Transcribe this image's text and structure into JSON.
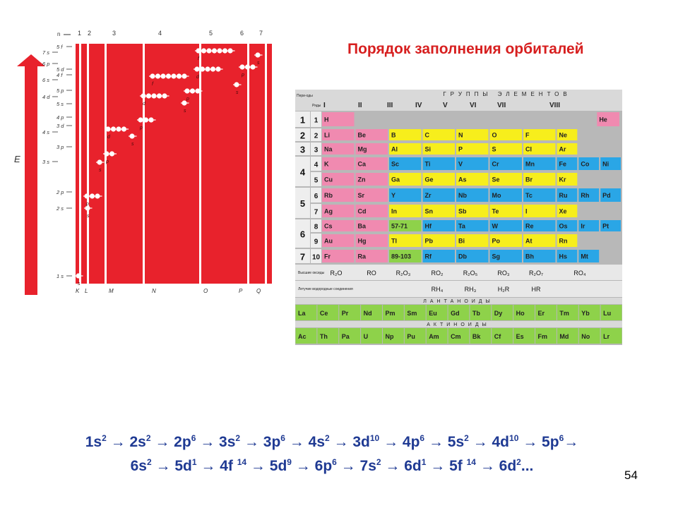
{
  "slide": {
    "title": "Порядок заполнения орбиталей",
    "page_number": "54"
  },
  "energy_diagram": {
    "axis_label": "E",
    "n_label": "n",
    "shell_numbers": [
      "1",
      "2",
      "3",
      "4",
      "5",
      "6",
      "7"
    ],
    "shell_letters": [
      "K",
      "L",
      "M",
      "N",
      "O",
      "P",
      "Q"
    ],
    "left_levels": [
      "7 s",
      "5 f",
      "6 p",
      "5 d",
      "4 f",
      "6 s",
      "5 p",
      "4 d",
      "5 s",
      "4 p",
      "3 d",
      "4 s",
      "3 p",
      "3 s",
      "2 p",
      "2 s",
      "1 s"
    ],
    "orbital_tags": [
      "s",
      "s",
      "p",
      "s",
      "p",
      "d",
      "s",
      "p",
      "d",
      "f",
      "s",
      "p",
      "d",
      "f",
      "s",
      "p",
      "s"
    ],
    "colors": {
      "background": "#e8222c",
      "column_line": "#ffffff",
      "electron": "#ffffff",
      "arrow": "#e8222c"
    }
  },
  "periodic_table": {
    "header": "ГРУППЫ ЭЛЕМЕНТОВ",
    "corner_labels": [
      "Пери-оды",
      "Ряды"
    ],
    "groups": [
      "I",
      "II",
      "III",
      "IV",
      "V",
      "VI",
      "VII",
      "VIII"
    ],
    "periods": [
      "1",
      "2",
      "3",
      "4",
      "5",
      "6",
      "7"
    ],
    "rows": [
      "1",
      "2",
      "3",
      "4",
      "5",
      "6",
      "7",
      "8",
      "9",
      "10"
    ],
    "row_elements": [
      [
        "H",
        "He"
      ],
      [
        "Li",
        "Be",
        "B",
        "C",
        "N",
        "O",
        "F",
        "Ne"
      ],
      [
        "Na",
        "Mg",
        "Al",
        "Si",
        "P",
        "S",
        "Cl",
        "Ar"
      ],
      [
        "K",
        "Ca",
        "Sc",
        "Ti",
        "V",
        "Cr",
        "Mn",
        "Fe",
        "Co",
        "Ni"
      ],
      [
        "Cu",
        "Zn",
        "Ga",
        "Ge",
        "As",
        "Se",
        "Br",
        "Kr"
      ],
      [
        "Rb",
        "Sr",
        "Y",
        "Zr",
        "Nb",
        "Mo",
        "Tc",
        "Ru",
        "Rh",
        "Pd"
      ],
      [
        "Ag",
        "Cd",
        "In",
        "Sn",
        "Sb",
        "Te",
        "I",
        "Xe"
      ],
      [
        "Cs",
        "Ba",
        "57-71",
        "Hf",
        "Ta",
        "W",
        "Re",
        "Os",
        "Ir",
        "Pt"
      ],
      [
        "Au",
        "Hg",
        "Tl",
        "Pb",
        "Bi",
        "Po",
        "At",
        "Rn"
      ],
      [
        "Fr",
        "Ra",
        "89-103",
        "Rf",
        "Db",
        "Sg",
        "Bh",
        "Hs",
        "Mt"
      ]
    ],
    "oxide_label": "Высшие оксиды",
    "oxides": [
      "R₂O",
      "RO",
      "R₂O₃",
      "RO₂",
      "R₂O₅",
      "RO₃",
      "R₂O₇",
      "RO₄"
    ],
    "hydride_label": "Летучие водородные соединения",
    "hydrides": [
      "RH₄",
      "RH₃",
      "H₂R",
      "HR"
    ],
    "lanthanides_label": "ЛАНТАНОИДЫ",
    "lanthanides": [
      "La",
      "Ce",
      "Pr",
      "Nd",
      "Pm",
      "Sm",
      "Eu",
      "Gd",
      "Tb",
      "Dy",
      "Ho",
      "Er",
      "Tm",
      "Yb",
      "Lu"
    ],
    "actinides_label": "АКТИНОИДЫ",
    "actinides": [
      "Ac",
      "Th",
      "Pa",
      "U",
      "Np",
      "Pu",
      "Am",
      "Cm",
      "Bk",
      "Cf",
      "Es",
      "Fm",
      "Md",
      "No",
      "Lr"
    ],
    "colors": {
      "s": "#f08ab0",
      "p": "#f7ee1c",
      "d": "#2aa6e6",
      "f": "#8ed24a",
      "header": "#d9d9d9",
      "row_label": "#eeeeee"
    }
  },
  "sequence": {
    "line1": [
      {
        "orb": "1s",
        "exp": "2"
      },
      {
        "orb": "2s",
        "exp": "2"
      },
      {
        "orb": "2p",
        "exp": "6"
      },
      {
        "orb": "3s",
        "exp": "2"
      },
      {
        "orb": "3p",
        "exp": "6"
      },
      {
        "orb": "4s",
        "exp": "2"
      },
      {
        "orb": "3d",
        "exp": "10"
      },
      {
        "orb": "4p",
        "exp": "6"
      },
      {
        "orb": "5s",
        "exp": "2"
      },
      {
        "orb": "4d",
        "exp": "10"
      },
      {
        "orb": "5p",
        "exp": "6"
      }
    ],
    "line2": [
      {
        "orb": "6s",
        "exp": "2"
      },
      {
        "orb": "5d",
        "exp": "1"
      },
      {
        "orb": "4f ",
        "exp": "14"
      },
      {
        "orb": "5d",
        "exp": "9"
      },
      {
        "orb": "6p",
        "exp": "6"
      },
      {
        "orb": "7s",
        "exp": "2"
      },
      {
        "orb": "6d",
        "exp": "1"
      },
      {
        "orb": "5f ",
        "exp": "14"
      },
      {
        "orb": "6d",
        "exp": "2"
      }
    ],
    "arrow": "→",
    "ending": "..."
  }
}
